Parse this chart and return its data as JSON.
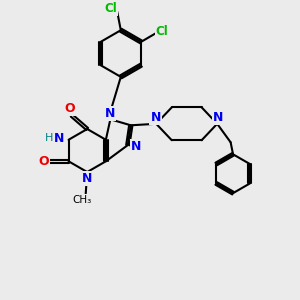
{
  "background_color": "#ebebeb",
  "bond_color": "#000000",
  "bond_width": 1.5,
  "N_color": "#0000ee",
  "O_color": "#ee0000",
  "Cl_color": "#00bb00",
  "H_color": "#008080",
  "C_color": "#000000",
  "figsize": [
    3.0,
    3.0
  ],
  "dpi": 100,
  "xlim": [
    0,
    10
  ],
  "ylim": [
    0,
    10
  ]
}
